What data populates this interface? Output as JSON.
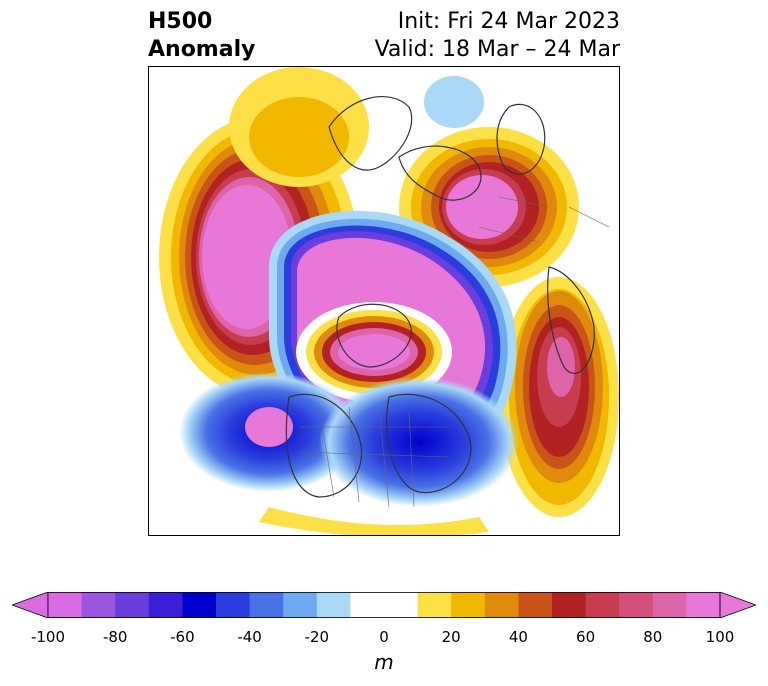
{
  "title": {
    "left_line1": "H500",
    "left_line2": "Anomaly",
    "right_line1": "Init: Fri 24 Mar 2023",
    "right_line2": "Valid: 18 Mar – 24 Mar"
  },
  "map": {
    "projection": "north polar stereographic",
    "field": "500 hPa geopotential height anomaly"
  },
  "colorbar": {
    "units": "m",
    "ticks": [
      "-100",
      "-80",
      "-60",
      "-40",
      "-20",
      "0",
      "20",
      "40",
      "60",
      "80",
      "100"
    ],
    "extend": "both",
    "colors": [
      "#d96be3",
      "#9b55de",
      "#6a3ddd",
      "#3b1fd6",
      "#0000cc",
      "#2a3ddd",
      "#4a72e6",
      "#6eaaf0",
      "#aad8f7",
      "#ffffff",
      "#ffffff",
      "#fde046",
      "#f2b800",
      "#e08a0c",
      "#c85418",
      "#b22222",
      "#c83c50",
      "#d2507a",
      "#dc64a8",
      "#e878d8"
    ],
    "under_color": "#d96be3",
    "over_color": "#e878d8"
  }
}
